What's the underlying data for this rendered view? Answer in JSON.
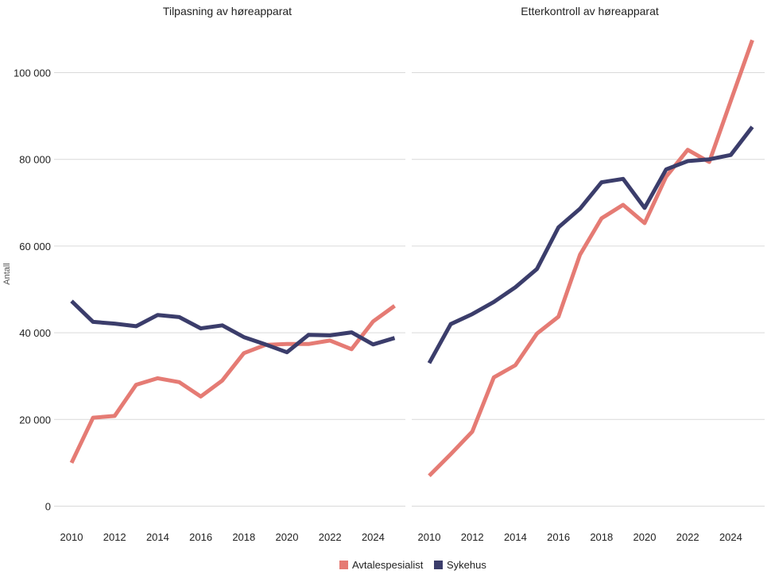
{
  "chart_data": [
    {
      "type": "line",
      "title": "Tilpasning av høreapparat",
      "ylabel": "Antall",
      "ylim": [
        0,
        110000
      ],
      "yticks": [
        0,
        20000,
        40000,
        60000,
        80000,
        100000
      ],
      "ytick_labels": [
        "0",
        "20 000",
        "40 000",
        "60 000",
        "80 000",
        "100 000"
      ],
      "xticks": [
        2010,
        2012,
        2014,
        2016,
        2018,
        2020,
        2022,
        2024
      ],
      "xtick_labels": [
        "2010",
        "2012",
        "2014",
        "2016",
        "2018",
        "2020",
        "2022",
        "2024"
      ],
      "x": [
        2010,
        2011,
        2012,
        2013,
        2014,
        2015,
        2016,
        2017,
        2018,
        2019,
        2020,
        2021,
        2022,
        2023,
        2024,
        2025
      ],
      "series": [
        {
          "name": "Avtalespesialist",
          "color": "#e57b74",
          "values": [
            10000,
            20400,
            20800,
            28000,
            29500,
            28600,
            25300,
            29000,
            35300,
            37200,
            37400,
            37400,
            38200,
            36200,
            42600,
            46200
          ]
        },
        {
          "name": "Sykehus",
          "color": "#3b3d6b",
          "values": [
            47300,
            42500,
            42100,
            41500,
            44100,
            43600,
            41000,
            41700,
            39000,
            37300,
            35500,
            39500,
            39400,
            40100,
            37300,
            38800
          ]
        }
      ]
    },
    {
      "type": "line",
      "title": "Etterkontroll av høreapparat",
      "ylim": [
        0,
        110000
      ],
      "xticks": [
        2010,
        2012,
        2014,
        2016,
        2018,
        2020,
        2022,
        2024
      ],
      "xtick_labels": [
        "2010",
        "2012",
        "2014",
        "2016",
        "2018",
        "2020",
        "2022",
        "2024"
      ],
      "x": [
        2010,
        2011,
        2012,
        2013,
        2014,
        2015,
        2016,
        2017,
        2018,
        2019,
        2020,
        2021,
        2022,
        2023,
        2024,
        2025
      ],
      "series": [
        {
          "name": "Avtalespesialist",
          "color": "#e57b74",
          "values": [
            7000,
            12000,
            17200,
            29700,
            32500,
            39800,
            43700,
            58000,
            66400,
            69500,
            65300,
            76000,
            82200,
            79400,
            93500,
            107500
          ]
        },
        {
          "name": "Sykehus",
          "color": "#3b3d6b",
          "values": [
            33000,
            42000,
            44300,
            47100,
            50500,
            54700,
            64300,
            68600,
            74700,
            75500,
            68800,
            77700,
            79600,
            80000,
            81000,
            87500
          ]
        }
      ]
    }
  ],
  "legend": {
    "position": "bottom-center",
    "items": [
      {
        "label": "Avtalespesialist",
        "color": "#e57b74"
      },
      {
        "label": "Sykehus",
        "color": "#3b3d6b"
      }
    ]
  }
}
